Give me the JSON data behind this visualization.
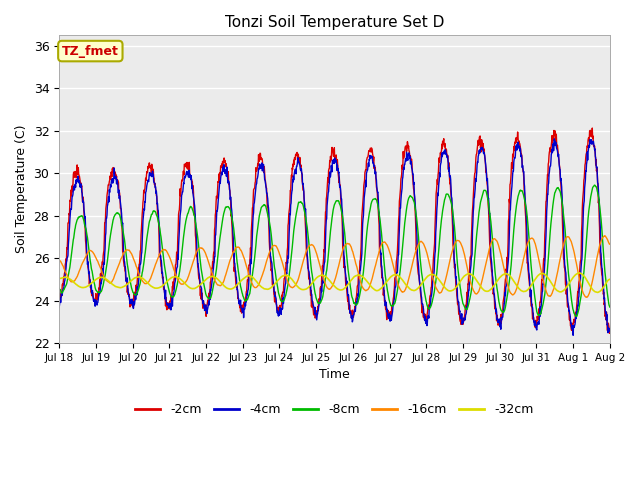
{
  "title": "Tonzi Soil Temperature Set D",
  "xlabel": "Time",
  "ylabel": "Soil Temperature (C)",
  "ylim": [
    22,
    36.5
  ],
  "annotation_text": "TZ_fmet",
  "annotation_bg": "#ffffcc",
  "annotation_border": "#aaaa00",
  "annotation_fg": "#cc0000",
  "background_color": "#ffffff",
  "plot_bg": "#ebebeb",
  "grid_color": "#ffffff",
  "series_colors": [
    "#dd0000",
    "#0000cc",
    "#00bb00",
    "#ff8800",
    "#dddd00"
  ],
  "series_labels": [
    "-2cm",
    "-4cm",
    "-8cm",
    "-16cm",
    "-32cm"
  ],
  "series_lw": [
    1.0,
    1.0,
    1.0,
    1.0,
    1.2
  ],
  "xtick_labels": [
    "Jul 18",
    "Jul 19",
    "Jul 20",
    "Jul 21",
    "Jul 22",
    "Jul 23",
    "Jul 24",
    "Jul 25",
    "Jul 26",
    "Jul 27",
    "Jul 28",
    "Jul 29",
    "Jul 30",
    "Jul 31",
    "Aug 1",
    "Aug 2"
  ],
  "ytick_values": [
    22,
    24,
    26,
    28,
    30,
    32,
    34,
    36
  ],
  "n_points": 1440,
  "end_day": 15.0
}
